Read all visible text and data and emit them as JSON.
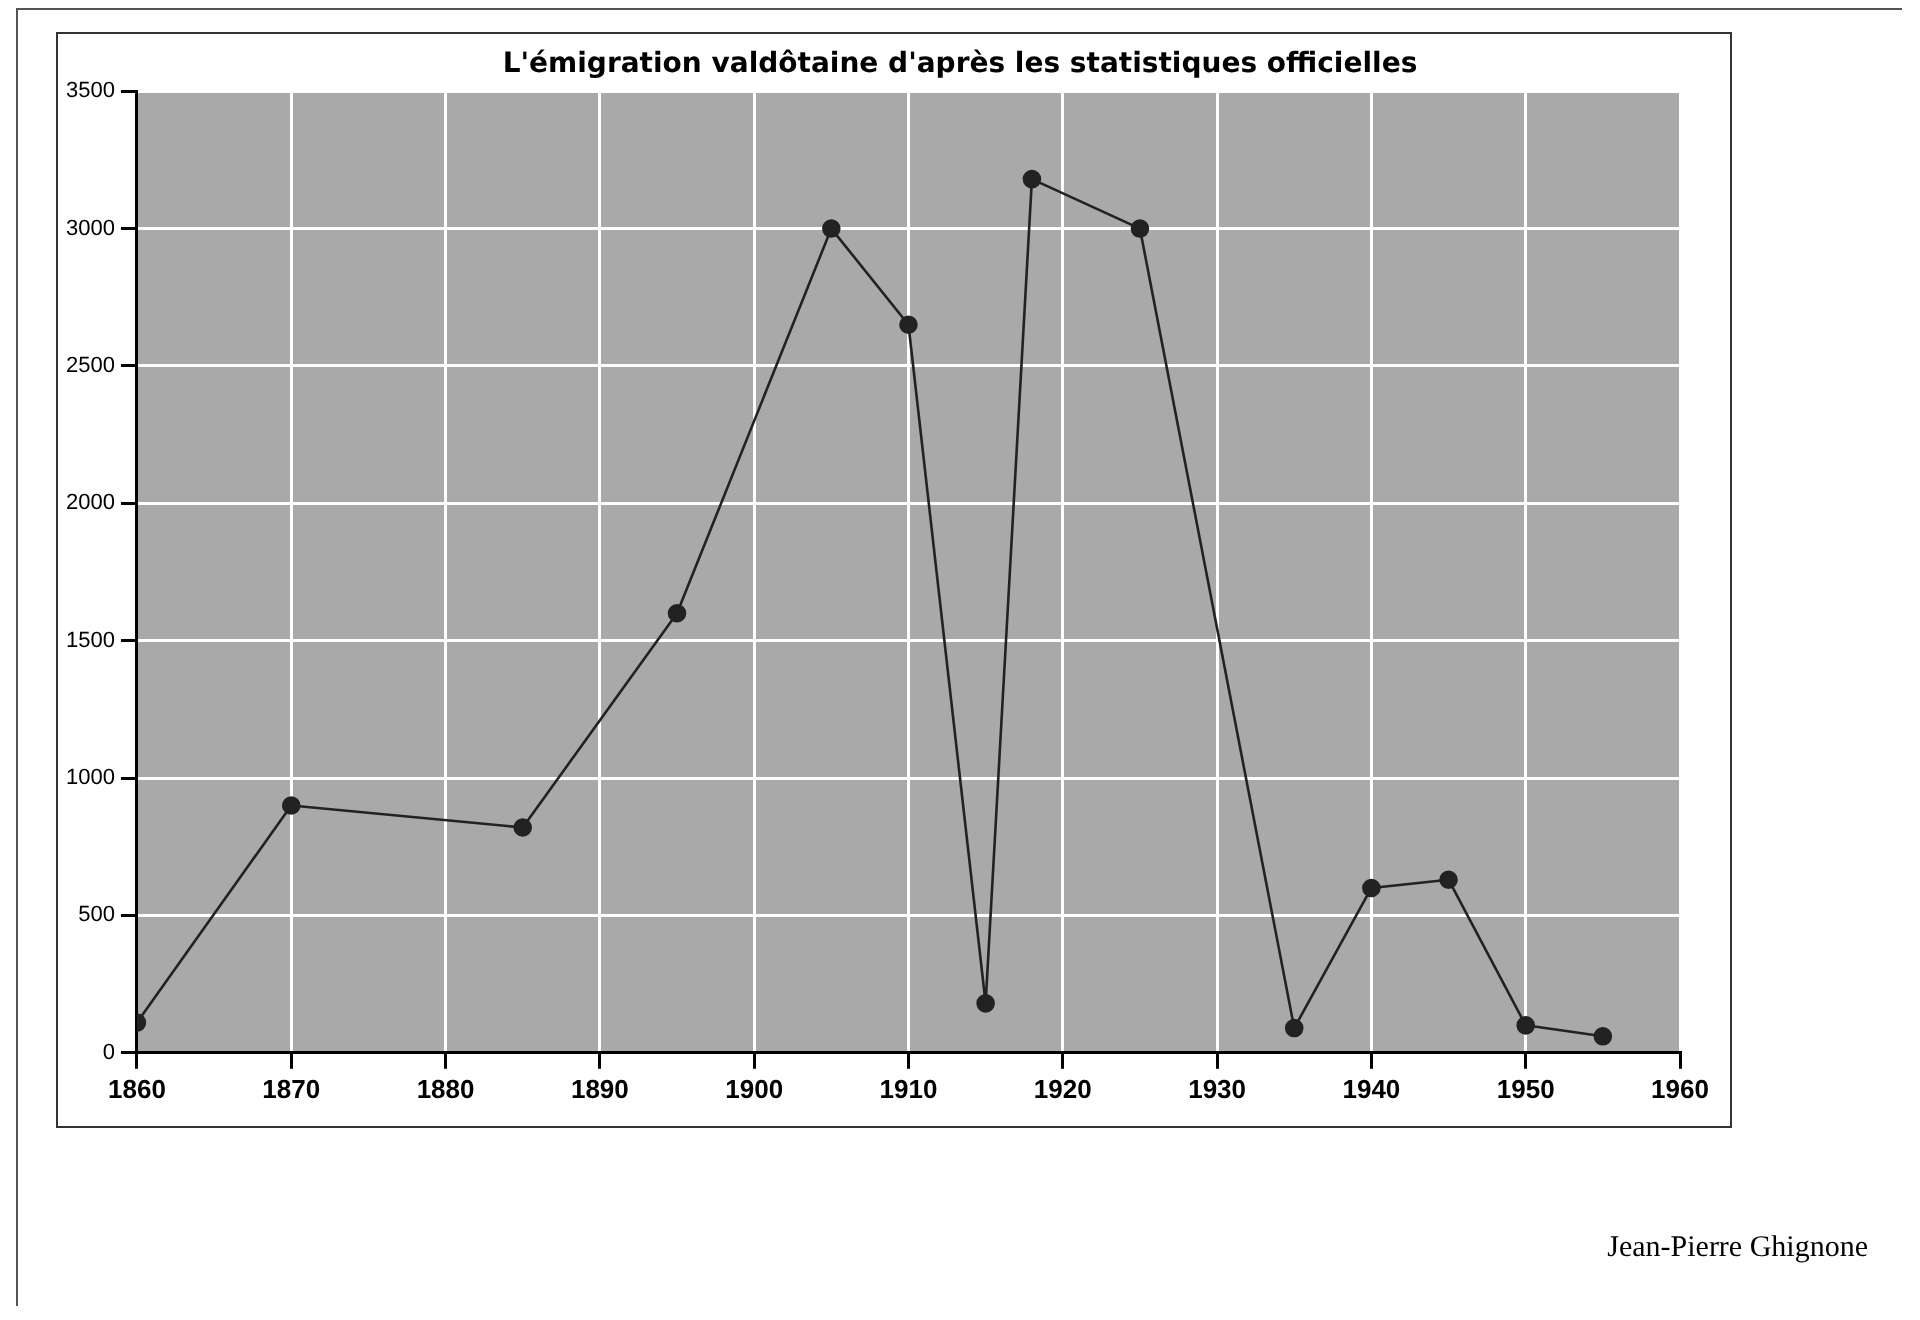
{
  "chart_data": {
    "type": "line",
    "title": "L'émigration valdôtaine d'après les statistiques officielles",
    "x": [
      1860,
      1870,
      1885,
      1895,
      1905,
      1910,
      1915,
      1918,
      1925,
      1935,
      1940,
      1945,
      1950,
      1955
    ],
    "series": [
      {
        "color": "#222222",
        "values": [
          110,
          900,
          820,
          1600,
          3000,
          2650,
          180,
          3180,
          3000,
          90,
          600,
          630,
          100,
          60
        ]
      }
    ],
    "xlim": [
      1860,
      1960
    ],
    "xticks": [
      1860,
      1870,
      1880,
      1890,
      1900,
      1910,
      1920,
      1930,
      1940,
      1950,
      1960
    ],
    "ylim": [
      0,
      3500
    ],
    "yticks": [
      0,
      500,
      1000,
      1500,
      2000,
      2500,
      3000,
      3500
    ],
    "grid": true,
    "legend": false,
    "marker": "circle",
    "line_style": "solid",
    "annotations": [
      "Jean-Pierre Ghignone"
    ]
  }
}
